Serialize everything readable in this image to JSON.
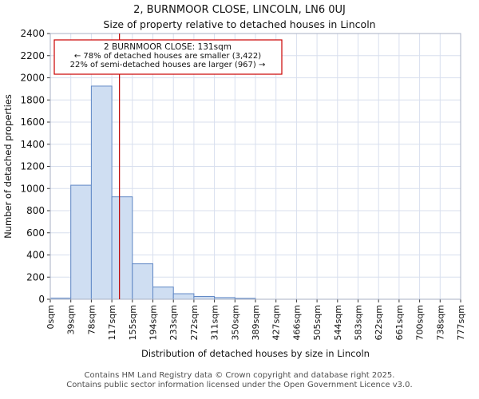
{
  "chart_data": {
    "type": "bar",
    "title": "2, BURNMOOR CLOSE, LINCOLN, LN6 0UJ",
    "subtitle": "Size of property relative to detached houses in Lincoln",
    "xlabel": "Distribution of detached houses by size in Lincoln",
    "ylabel": "Number of detached properties",
    "x_tick_labels": [
      "0sqm",
      "39sqm",
      "78sqm",
      "117sqm",
      "155sqm",
      "194sqm",
      "233sqm",
      "272sqm",
      "311sqm",
      "350sqm",
      "389sqm",
      "427sqm",
      "466sqm",
      "505sqm",
      "544sqm",
      "583sqm",
      "622sqm",
      "661sqm",
      "700sqm",
      "738sqm",
      "777sqm"
    ],
    "bin_edges_sqm": [
      0,
      39,
      78,
      117,
      155,
      194,
      233,
      272,
      311,
      350,
      389,
      427,
      466,
      505,
      544,
      583,
      622,
      661,
      700,
      738,
      777
    ],
    "values": [
      10,
      1030,
      1925,
      925,
      320,
      110,
      50,
      25,
      15,
      8,
      0,
      0,
      0,
      0,
      0,
      0,
      0,
      0,
      0,
      0
    ],
    "ylim": [
      0,
      2400
    ],
    "y_tick_step": 200,
    "grid": true,
    "legend": "none",
    "marker": {
      "value_sqm": 131,
      "color": "#bb0000"
    },
    "annotation": {
      "line1": "2 BURNMOOR CLOSE: 131sqm",
      "line2": "← 78% of detached houses are smaller (3,422)",
      "line3": "22% of semi-detached houses are larger (967) →",
      "border_color": "#cc0000"
    },
    "colors": {
      "bar_fill": "#cfdef2",
      "bar_stroke": "#5f87c5",
      "grid": "#d8dfee"
    }
  },
  "footer": {
    "line1": "Contains HM Land Registry data © Crown copyright and database right 2025.",
    "line2": "Contains public sector information licensed under the Open Government Licence v3.0."
  }
}
